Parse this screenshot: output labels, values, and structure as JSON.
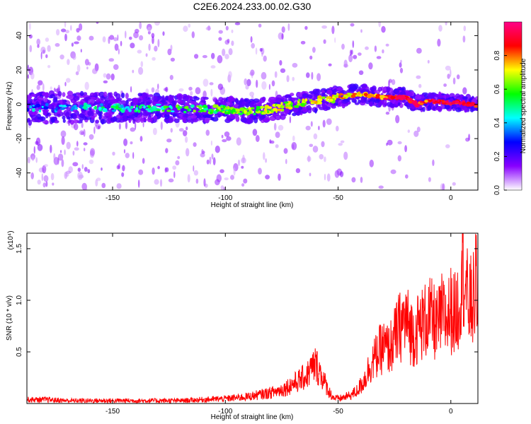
{
  "title": "C2E6.2024.233.00.02.G30",
  "chart_data": [
    {
      "type": "heatmap",
      "title": "C2E6.2024.233.00.02.G30",
      "xlabel": "Height of straight line (km)",
      "ylabel": "Frequency (Hz)",
      "xlim": [
        -188,
        12
      ],
      "ylim": [
        -50,
        48
      ],
      "xticks": [
        -150,
        -100,
        -50,
        0
      ],
      "xtick_labels": [
        "-150",
        "-100",
        "-50",
        "0"
      ],
      "yticks": [
        40,
        20,
        0,
        -20,
        -40
      ],
      "ytick_labels": [
        "40",
        "20",
        "0",
        "-20",
        "-40"
      ],
      "ridge": {
        "x": [
          -188,
          -170,
          -150,
          -130,
          -110,
          -100,
          -90,
          -80,
          -70,
          -60,
          -50,
          -45,
          -40,
          -30,
          -20,
          -15,
          -10,
          0,
          5,
          12
        ],
        "frequency_hz": [
          -2,
          -2,
          -2,
          -2,
          -3,
          -3,
          -4,
          -3,
          0,
          2,
          4,
          5,
          6,
          4,
          4,
          0,
          2,
          1,
          1,
          -1
        ]
      },
      "colorbar": {
        "label": "Normalized spectral amplitude",
        "range": [
          0,
          1
        ],
        "ticks": [
          0.0,
          0.2,
          0.4,
          0.6,
          0.8
        ],
        "tick_labels": [
          "0.0",
          "0.2",
          "0.4",
          "0.6",
          "0.8"
        ],
        "colormap": [
          "#ffffff",
          "#8800ff",
          "#0000ff",
          "#00ffff",
          "#00ff00",
          "#ffff00",
          "#ff0000",
          "#ff0088"
        ]
      }
    },
    {
      "type": "line",
      "xlabel": "Height of straight line (km)",
      "ylabel": "SNR (10 * v/v)",
      "y_multiplier": "(x10⁴)",
      "xlim": [
        -188,
        12
      ],
      "ylim": [
        0,
        1.65
      ],
      "xticks": [
        -150,
        -100,
        -50,
        0
      ],
      "xtick_labels": [
        "-150",
        "-100",
        "-50",
        "0"
      ],
      "yticks": [
        0.5,
        1.0,
        1.5
      ],
      "ytick_labels": [
        "0.5",
        "1.0",
        "1.5"
      ],
      "series": [
        {
          "color": "#ff0000",
          "x": [
            -188,
            -180,
            -170,
            -160,
            -150,
            -140,
            -130,
            -120,
            -110,
            -100,
            -95,
            -90,
            -85,
            -80,
            -75,
            -70,
            -67,
            -64,
            -62,
            -60,
            -58,
            -56,
            -54,
            -52,
            -50,
            -48,
            -45,
            -42,
            -40,
            -38,
            -36,
            -34,
            -32,
            -30,
            -28,
            -26,
            -24,
            -22,
            -20,
            -18,
            -16,
            -14,
            -12,
            -10,
            -8,
            -6,
            -4,
            -2,
            0,
            2,
            4,
            5,
            6,
            7,
            8,
            10,
            12
          ],
          "y": [
            0.04,
            0.04,
            0.03,
            0.03,
            0.03,
            0.03,
            0.03,
            0.03,
            0.04,
            0.05,
            0.06,
            0.07,
            0.09,
            0.11,
            0.14,
            0.2,
            0.24,
            0.28,
            0.35,
            0.4,
            0.32,
            0.22,
            0.12,
            0.06,
            0.05,
            0.06,
            0.08,
            0.12,
            0.18,
            0.26,
            0.38,
            0.45,
            0.52,
            0.58,
            0.55,
            0.6,
            0.72,
            0.8,
            0.85,
            0.75,
            0.7,
            0.8,
            0.82,
            0.88,
            0.85,
            0.78,
            0.9,
            0.85,
            0.95,
            0.9,
            1.05,
            1.55,
            1.3,
            1.1,
            1.0,
            1.05,
            1.3
          ]
        }
      ]
    }
  ]
}
